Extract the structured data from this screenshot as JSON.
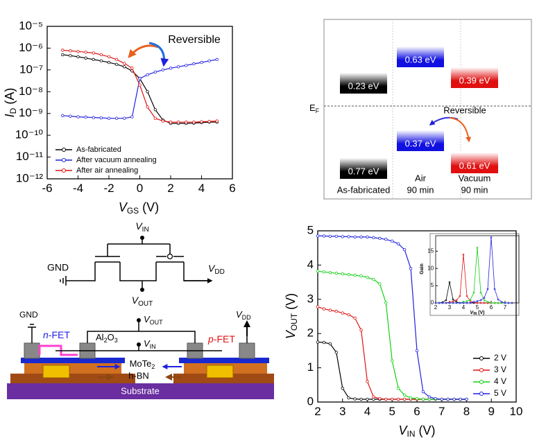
{
  "chart_data": [
    {
      "type": "line",
      "log_y": true,
      "xlabel": {
        "main": "V",
        "sub": "GS",
        "unit": " (V)"
      },
      "ylabel": {
        "main": "I",
        "sub": "D",
        "unit": " (A)"
      },
      "annotation": "Reversible",
      "legend": "lower left",
      "xlim": [
        -6,
        6
      ],
      "xticks": [
        -6,
        -4,
        -2,
        0,
        2,
        4,
        6
      ],
      "ylim": [
        1e-12,
        1e-05
      ],
      "yticks": [
        {
          "value": 1e-12,
          "label": "10⁻¹²"
        },
        {
          "value": 1e-11,
          "label": "10⁻¹¹"
        },
        {
          "value": 1e-10,
          "label": "10⁻¹⁰"
        },
        {
          "value": 1e-09,
          "label": "10⁻⁹"
        },
        {
          "value": 1e-08,
          "label": "10⁻⁸"
        },
        {
          "value": 1e-07,
          "label": "10⁻⁷"
        },
        {
          "value": 1e-06,
          "label": "10⁻⁶"
        },
        {
          "value": 1e-05,
          "label": "10⁻⁵"
        }
      ],
      "x": [
        -5,
        -4.5,
        -4,
        -3.5,
        -3,
        -2.5,
        -2,
        -1.5,
        -1,
        -0.5,
        0,
        0.5,
        1,
        1.5,
        2,
        2.5,
        3,
        3.5,
        4,
        4.5,
        5
      ],
      "series": [
        {
          "name": "As-fabricated",
          "color": "#000000",
          "values": [
            5e-07,
            4.5e-07,
            4e-07,
            3.5e-07,
            3e-07,
            2.6e-07,
            2.2e-07,
            1.8e-07,
            1.4e-07,
            9e-08,
            4e-08,
            1e-08,
            1.5e-09,
            5e-10,
            3.5e-10,
            3.5e-10,
            3.5e-10,
            3.6e-10,
            3.8e-10,
            4e-10,
            4e-10
          ]
        },
        {
          "name": "After vacuum annealing",
          "color": "#1f1fe0",
          "values": [
            8e-10,
            7.5e-10,
            7e-10,
            6.8e-10,
            6.5e-10,
            6.3e-10,
            6e-10,
            6e-10,
            6e-10,
            7e-10,
            4e-08,
            6e-08,
            8e-08,
            1e-07,
            1.2e-07,
            1.4e-07,
            1.6e-07,
            1.9e-07,
            2.2e-07,
            2.6e-07,
            3e-07
          ]
        },
        {
          "name": "After air annealing",
          "color": "#e01010",
          "values": [
            8e-07,
            7.5e-07,
            7e-07,
            6.5e-07,
            6e-07,
            5e-07,
            4e-07,
            3e-07,
            2e-07,
            1.2e-07,
            2e-08,
            2e-09,
            6e-10,
            4.5e-10,
            4e-10,
            4e-10,
            4e-10,
            4e-10,
            4.2e-10,
            4.3e-10,
            4.5e-10
          ]
        }
      ]
    },
    {
      "type": "line",
      "xlabel": {
        "main": "V",
        "sub": "IN",
        "unit": " (V)"
      },
      "ylabel": {
        "main": "V",
        "sub": "OUT",
        "unit": " (V)"
      },
      "legend": "lower right",
      "xlim": [
        2,
        10
      ],
      "xticks": [
        2,
        3,
        4,
        5,
        6,
        7,
        8,
        9,
        10
      ],
      "ylim": [
        0,
        5
      ],
      "yticks": [
        0,
        1,
        2,
        3,
        4,
        5
      ],
      "x": [
        2,
        2.25,
        2.5,
        2.75,
        3,
        3.25,
        3.5,
        3.75,
        4,
        4.25,
        4.5,
        4.75,
        5,
        5.25,
        5.5,
        5.75,
        6,
        6.25,
        6.5,
        6.75,
        7,
        7.25,
        7.5,
        7.75,
        8
      ],
      "series": [
        {
          "name": "2 V",
          "color": "#000000",
          "values": [
            1.75,
            1.74,
            1.7,
            1.45,
            0.4,
            0.12,
            0.09,
            0.08,
            0.08,
            0.08,
            0.08,
            0.08,
            0.08,
            0.08,
            0.08,
            0.08,
            0.08,
            0.08,
            0.08,
            0.08,
            0.08,
            0.08,
            0.08,
            0.08,
            0.08
          ]
        },
        {
          "name": "3 V",
          "color": "#e01010",
          "values": [
            2.78,
            2.72,
            2.68,
            2.65,
            2.6,
            2.55,
            2.45,
            2.1,
            0.6,
            0.15,
            0.1,
            0.08,
            0.08,
            0.08,
            0.08,
            0.08,
            0.08,
            0.08,
            0.08,
            0.08,
            0.08,
            0.08,
            0.08,
            0.08,
            0.08
          ]
        },
        {
          "name": "4 V",
          "color": "#10d010",
          "values": [
            3.82,
            3.8,
            3.78,
            3.76,
            3.74,
            3.72,
            3.7,
            3.68,
            3.64,
            3.58,
            3.45,
            2.9,
            1.2,
            0.4,
            0.2,
            0.12,
            0.1,
            0.08,
            0.08,
            0.08,
            0.08,
            0.08,
            0.08,
            0.08,
            0.08
          ]
        },
        {
          "name": "5 V",
          "color": "#1f1fe0",
          "values": [
            4.85,
            4.85,
            4.84,
            4.84,
            4.83,
            4.83,
            4.82,
            4.82,
            4.82,
            4.8,
            4.78,
            4.75,
            4.7,
            4.62,
            4.45,
            3.9,
            1.5,
            0.3,
            0.15,
            0.1,
            0.08,
            0.08,
            0.08,
            0.08,
            0.08
          ]
        }
      ]
    },
    {
      "type": "line",
      "xlabel": {
        "main": "V",
        "sub": "IN",
        "unit": " (V)"
      },
      "ylabel": {
        "main": "Gain"
      },
      "xlim": [
        2,
        8
      ],
      "xticks": [
        2,
        3,
        4,
        5,
        6,
        7
      ],
      "ylim": [
        0,
        19.5
      ],
      "yticks": [
        0,
        5,
        10,
        15
      ],
      "x": [
        2,
        2.25,
        2.5,
        2.75,
        3,
        3.25,
        3.5,
        3.75,
        4,
        4.25,
        4.5,
        4.75,
        5,
        5.25,
        5.5,
        5.75,
        6,
        6.25,
        6.5,
        6.75,
        7,
        7.25,
        7.5
      ],
      "series": [
        {
          "color": "#000000",
          "values": [
            0,
            0,
            0.2,
            0.8,
            6,
            1,
            0.3,
            0,
            0,
            0,
            0,
            0,
            0,
            0,
            0,
            0,
            0,
            0,
            0,
            0,
            0,
            0,
            0
          ]
        },
        {
          "color": "#e01010",
          "values": [
            0,
            0,
            0,
            0,
            0.2,
            0.4,
            0.8,
            2,
            14,
            2,
            0.5,
            0.2,
            0,
            0,
            0,
            0,
            0,
            0,
            0,
            0,
            0,
            0,
            0
          ]
        },
        {
          "color": "#10d010",
          "values": [
            0,
            0,
            0,
            0,
            0,
            0,
            0,
            0,
            0.3,
            0.5,
            0.9,
            3,
            16,
            3,
            0.8,
            0.3,
            0,
            0,
            0,
            0,
            0,
            0,
            0
          ]
        },
        {
          "color": "#1f1fe0",
          "values": [
            0,
            0,
            0,
            0,
            0,
            0,
            0,
            0,
            0,
            0,
            0,
            0.3,
            0.5,
            0.8,
            1.5,
            4,
            19,
            4,
            1,
            0.3,
            0,
            0,
            0
          ]
        }
      ]
    }
  ],
  "band_diagram": {
    "ef": [
      "E",
      "F"
    ],
    "annotation": "Reversible",
    "columns": [
      {
        "label": [
          "As-fabricated"
        ],
        "upper": "0.23 eV",
        "lower": "0.77 eV",
        "color": "#000000"
      },
      {
        "label": [
          "Air",
          "90 min"
        ],
        "upper": "0.63 eV",
        "lower": "0.37 eV",
        "color": "#1010e0"
      },
      {
        "label": [
          "Vacuum",
          "90 min"
        ],
        "upper": "0.39 eV",
        "lower": "0.61 eV",
        "color": "#e01010"
      }
    ]
  },
  "circuit": {
    "top_vin": [
      "V",
      "IN"
    ],
    "top_gnd": "GND",
    "top_vdd": [
      "V",
      "DD"
    ],
    "top_vout": [
      "V",
      "OUT"
    ],
    "dev_gnd": "GND",
    "n_fet": [
      "n",
      "-FET"
    ],
    "al2o3": [
      "Al",
      "2",
      "O",
      "3"
    ],
    "dev_vout": [
      "V",
      "OUT"
    ],
    "dev_vin": [
      "V",
      "IN"
    ],
    "p_fet": [
      "p",
      "-FET"
    ],
    "dev_vdd": [
      "V",
      "DD"
    ],
    "mote2": [
      "MoTe",
      "2"
    ],
    "hbn": "h-BN",
    "substrate": "Substrate"
  }
}
